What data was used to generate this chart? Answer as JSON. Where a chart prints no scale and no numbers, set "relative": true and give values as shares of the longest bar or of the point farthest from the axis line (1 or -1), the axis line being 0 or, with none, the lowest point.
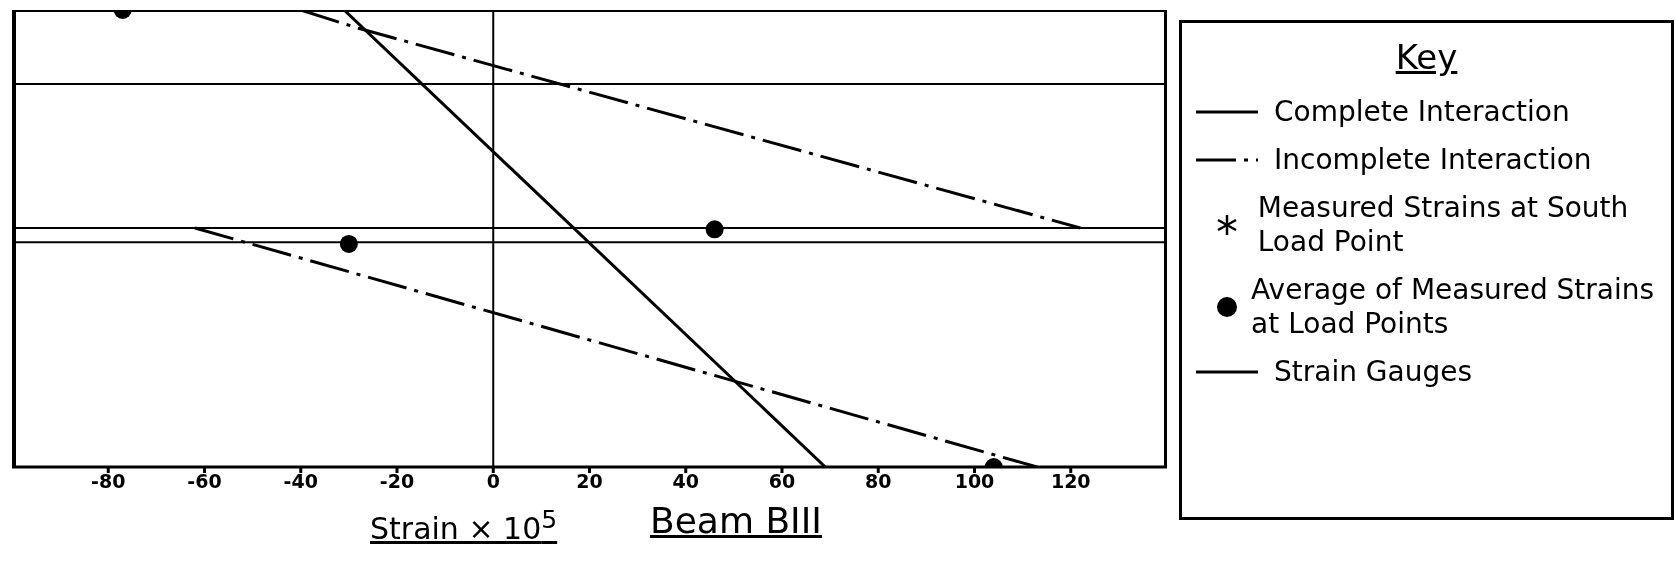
{
  "chart_data": {
    "type": "line",
    "title": "Beam BIII",
    "xlabel": "Strain × 10$^{5}$",
    "legend_title": "Key",
    "relative": true,
    "xlim": [
      -100,
      140
    ],
    "xticks": [
      -80,
      -60,
      -40,
      -20,
      0,
      20,
      40,
      60,
      80,
      100,
      120
    ],
    "legend": "right",
    "ref_lines": [
      {
        "axis": "y",
        "value": 0.838
      },
      {
        "axis": "y",
        "value": 0.523
      },
      {
        "axis": "y",
        "value": 0.492
      },
      {
        "axis": "x",
        "value": 0
      }
    ],
    "series": [
      {
        "name": "Complete Interaction",
        "color": "#000000",
        "line_style": "solid",
        "marker": "none",
        "x": [
          -31,
          69
        ],
        "values": [
          1,
          0
        ]
      },
      {
        "name": "Incomplete Interaction",
        "color": "#000000",
        "line_style": "dashdot",
        "marker": "none",
        "x": [
          -40,
          -28,
          122
        ],
        "values": [
          1,
          0.96,
          0.523
        ]
      },
      {
        "color": "#000000",
        "line_style": "dashdot",
        "marker": "none",
        "x": [
          -62,
          113
        ],
        "values": [
          0.523,
          0
        ]
      },
      {
        "type": "scatter",
        "name": "Measured Strains at South Load Point",
        "color": "#000000",
        "marker": "star"
      },
      {
        "type": "scatter",
        "name": "Average of Measured Strains at Load Points",
        "color": "#000000",
        "marker": "circle",
        "x": [
          -77,
          -30,
          46,
          104
        ],
        "values": [
          1,
          0.488,
          0.52,
          0
        ]
      },
      {
        "name": "Strain Gauges",
        "color": "#000000",
        "line_style": "solid",
        "marker": "none"
      }
    ]
  }
}
